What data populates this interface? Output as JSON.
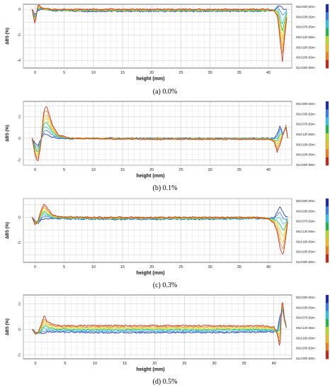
{
  "figure": {
    "captions": [
      "(a)  0.0%",
      "(b)  0.1%",
      "(c)  0.3%",
      "(d)  0.5%"
    ]
  },
  "chart_data": [
    {
      "type": "line",
      "panel": "(a)",
      "ylabel": "ΔBS (%)",
      "xlabel": "height (mm)",
      "xlim": [
        -2,
        44
      ],
      "ylim": [
        -4.6,
        0.4
      ],
      "x_ticks": [
        0,
        5,
        10,
        15,
        20,
        25,
        30,
        35,
        40
      ],
      "y_ticks": [
        0,
        -2,
        -4
      ],
      "grid": true,
      "legend_position": "right",
      "legend": [
        "00d:00h:00m",
        "00d:03h:59m",
        "00d:07h:59m",
        "00d:12h:59m",
        "00d:16h:59m",
        "00d:20h:59m",
        "01d:00h:59m"
      ],
      "series_colors": [
        "#1a2aa8",
        "#3a7ef0",
        "#35c8e6",
        "#1fb84a",
        "#b8e020",
        "#f0c020",
        "#f08020",
        "#c02818"
      ],
      "profile": {
        "x": [
          -0.5,
          0,
          0.5,
          1,
          1.5,
          3,
          10,
          20,
          30,
          38,
          40,
          41,
          41.6,
          42,
          42.4,
          42.8,
          43.2
        ],
        "start": [
          0,
          -0.4,
          -0.1,
          0,
          0,
          -0.1,
          -0.15,
          -0.15,
          -0.15,
          -0.15,
          -0.1,
          -0.1,
          0.3,
          0.3,
          0.1,
          0,
          0
        ],
        "end": [
          0,
          -1.2,
          0.4,
          0.15,
          0.05,
          0,
          0,
          0,
          0,
          0,
          0,
          -0.1,
          -0.6,
          -2.4,
          -4.1,
          -2.0,
          -0.5
        ]
      }
    },
    {
      "type": "line",
      "panel": "(b)",
      "ylabel": "ΔBS (%)",
      "xlabel": "height (mm)",
      "xlim": [
        -2,
        44
      ],
      "ylim": [
        -2.5,
        3.4
      ],
      "x_ticks": [
        0,
        5,
        10,
        15,
        20,
        25,
        30,
        35,
        40
      ],
      "y_ticks": [
        2,
        0,
        -2
      ],
      "grid": true,
      "legend_position": "right",
      "legend": [
        "00d:00h:00m",
        "00d:03h:59m",
        "00d:07h:59m",
        "00d:12h:59m",
        "00d:16h:59m",
        "00d:20h:59m",
        "01d:00h:59m"
      ],
      "series_colors": [
        "#1a2aa8",
        "#3a7ef0",
        "#35c8e6",
        "#1fb84a",
        "#b8e020",
        "#f0c020",
        "#f08020",
        "#c02818"
      ],
      "profile": {
        "x": [
          -0.5,
          0,
          0.5,
          1,
          1.5,
          2,
          3,
          4,
          6,
          10,
          20,
          30,
          38,
          40,
          41,
          41.5,
          42,
          42.5,
          43,
          43.3
        ],
        "start": [
          0,
          -0.5,
          -0.7,
          -0.1,
          0.4,
          0.3,
          0.1,
          0,
          -0.05,
          0,
          0,
          0,
          0,
          0,
          0,
          0.4,
          1.2,
          0.3,
          1.2,
          0
        ],
        "end": [
          0,
          -1.6,
          -2.2,
          -0.5,
          2.6,
          3.0,
          1.2,
          0.3,
          0,
          -0.05,
          -0.1,
          -0.1,
          -0.1,
          -0.1,
          -0.3,
          -1.3,
          -0.6,
          0.4,
          1.0,
          0
        ]
      }
    },
    {
      "type": "line",
      "panel": "(c)",
      "ylabel": "ΔBS (%)",
      "xlabel": "height (mm)",
      "xlim": [
        -2,
        44
      ],
      "ylim": [
        -3.6,
        1.5
      ],
      "x_ticks": [
        0,
        5,
        10,
        15,
        20,
        25,
        30,
        35,
        40
      ],
      "y_ticks": [
        0,
        -2
      ],
      "grid": true,
      "legend_position": "right",
      "legend": [
        "00d:00h:00m",
        "00d:03h:59m",
        "00d:07h:59m",
        "00d:12h:59m",
        "00d:16h:59m",
        "00d:20h:59m",
        "01d:00h:59m"
      ],
      "series_colors": [
        "#1a2aa8",
        "#3a7ef0",
        "#35c8e6",
        "#1fb84a",
        "#b8e020",
        "#f0c020",
        "#f08020",
        "#c02818"
      ],
      "profile": {
        "x": [
          -0.5,
          0,
          0.5,
          1,
          1.5,
          2,
          3,
          4,
          10,
          20,
          30,
          38,
          40,
          41,
          41.5,
          42,
          42.5,
          43,
          43.3
        ],
        "start": [
          0,
          -0.3,
          -0.5,
          -0.2,
          -0.1,
          -0.1,
          -0.1,
          -0.1,
          -0.15,
          -0.15,
          -0.15,
          -0.1,
          -0.1,
          0,
          0.4,
          0.9,
          0.4,
          0,
          0
        ],
        "end": [
          0,
          -0.6,
          -0.3,
          0.5,
          1.1,
          0.8,
          0.2,
          0.05,
          0,
          0,
          0,
          0,
          -0.1,
          -0.5,
          -1.2,
          -2.5,
          -3.1,
          -1.5,
          -0.3
        ]
      }
    },
    {
      "type": "line",
      "panel": "(d)",
      "ylabel": "ΔBS (%)",
      "xlabel": "height (mm)",
      "xlim": [
        -2,
        43
      ],
      "ylim": [
        -2.3,
        2.7
      ],
      "x_ticks": [
        0,
        5,
        10,
        15,
        20,
        25,
        30,
        35,
        40
      ],
      "y_ticks": [
        2,
        0,
        -2
      ],
      "grid": true,
      "legend_position": "right",
      "legend": [
        "00d:00h:00m",
        "00d:03h:59m",
        "00d:07h:59m",
        "00d:12h:59m",
        "00d:16h:59m",
        "00d:20h:59m",
        "01d:00h:59m"
      ],
      "series_colors": [
        "#1a2aa8",
        "#3a7ef0",
        "#35c8e6",
        "#1fb84a",
        "#b8e020",
        "#f0c020",
        "#f08020",
        "#c02818"
      ],
      "profile": {
        "x": [
          -0.5,
          0,
          0.5,
          1,
          1.5,
          2,
          3,
          4,
          10,
          20,
          30,
          38,
          40,
          40.6,
          41,
          41.4,
          41.8,
          42.2
        ],
        "start": [
          0,
          -0.2,
          -0.3,
          -0.3,
          -0.3,
          -0.2,
          -0.2,
          -0.2,
          -0.25,
          -0.25,
          -0.25,
          -0.2,
          -0.2,
          0,
          1.0,
          1.6,
          0.6,
          0
        ],
        "end": [
          0,
          -0.4,
          -0.2,
          0.4,
          1.1,
          0.6,
          0.4,
          0.3,
          0.3,
          0.3,
          0.3,
          0.3,
          0.2,
          -0.4,
          -1.5,
          2.5,
          0.8,
          0
        ]
      }
    }
  ]
}
